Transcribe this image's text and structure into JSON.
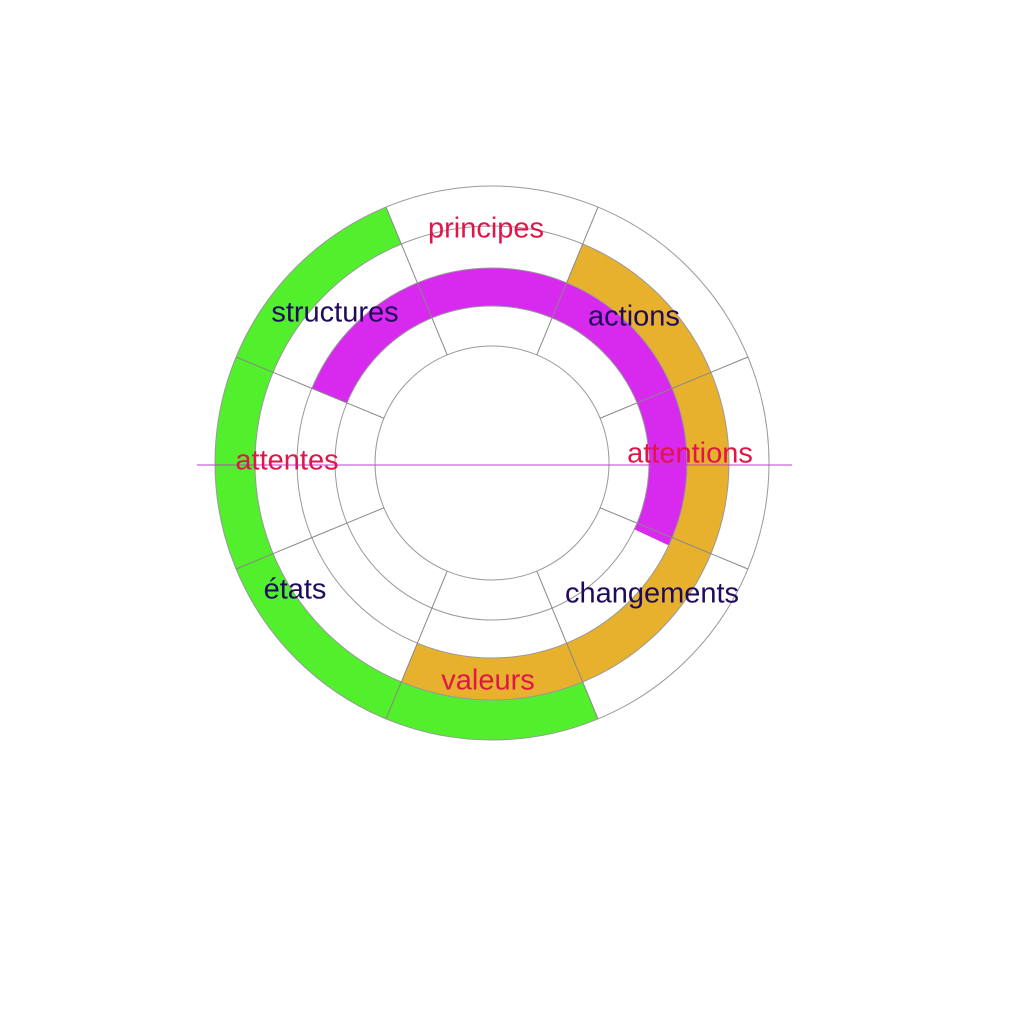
{
  "labels": [
    "principes",
    "actions",
    "attentions",
    "changements",
    "valeurs",
    "états",
    "attentes",
    "structures"
  ]
}
